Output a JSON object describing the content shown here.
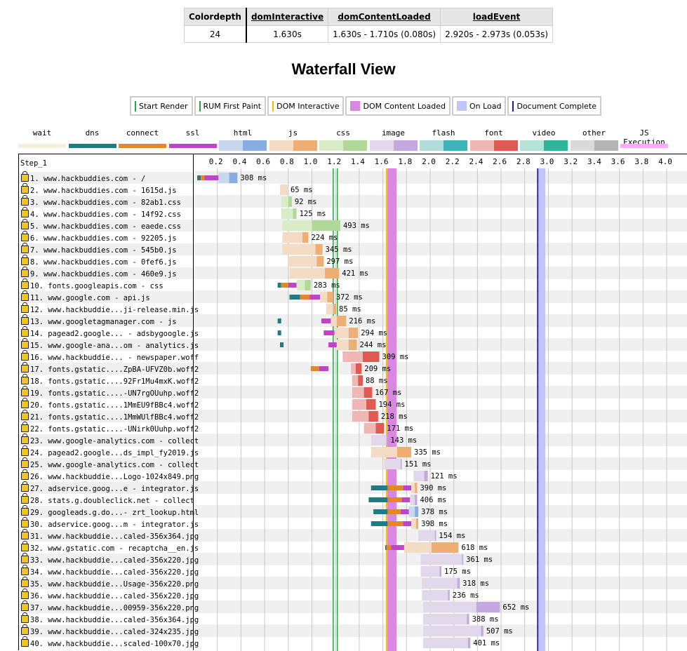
{
  "metrics": {
    "headers": [
      "Colordepth",
      "domInteractive",
      "domContentLoaded",
      "loadEvent"
    ],
    "values": [
      "24",
      "1.630s",
      "1.630s - 1.710s (0.080s)",
      "2.920s - 2.973s (0.053s)"
    ]
  },
  "title": "Waterfall View",
  "markers_legend": [
    {
      "label": "Start Render",
      "color": "#28a745"
    },
    {
      "label": "RUM First Paint",
      "color": "#28a745"
    },
    {
      "label": "DOM Interactive",
      "color": "#f0c000"
    },
    {
      "label": "DOM Content Loaded",
      "color": "#d888e0"
    },
    {
      "label": "On Load",
      "color": "#c0c4f8"
    },
    {
      "label": "Document Complete",
      "color": "#1e1ea8"
    }
  ],
  "type_legend": [
    {
      "label": "wait",
      "colors": [
        "#f2f0dc",
        "#f2f0dc"
      ]
    },
    {
      "label": "dns",
      "colors": [
        "#1e7d82",
        "#1e7d82"
      ]
    },
    {
      "label": "connect",
      "colors": [
        "#e6862a",
        "#e6862a"
      ]
    },
    {
      "label": "ssl",
      "colors": [
        "#c044c8",
        "#c044c8"
      ]
    },
    {
      "label": "html",
      "colors": [
        "#c8d8ee",
        "#86aee4"
      ]
    },
    {
      "label": "js",
      "colors": [
        "#f4dcc4",
        "#efae74"
      ]
    },
    {
      "label": "css",
      "colors": [
        "#d8ecc8",
        "#b0d898"
      ]
    },
    {
      "label": "image",
      "colors": [
        "#e2d8ec",
        "#c4a8e0"
      ]
    },
    {
      "label": "flash",
      "colors": [
        "#b0dcdc",
        "#3cb4b8"
      ]
    },
    {
      "label": "font",
      "colors": [
        "#f0b8b4",
        "#e05a52"
      ]
    },
    {
      "label": "video",
      "colors": [
        "#b4e4d8",
        "#30b49a"
      ]
    },
    {
      "label": "other",
      "colors": [
        "#dadada",
        "#b4b4b4"
      ]
    },
    {
      "label": "JS Execution",
      "colors": [
        "#ffaaff",
        "#ffaaff"
      ]
    }
  ],
  "step_label": "Step_1",
  "chart_data": {
    "type": "waterfall",
    "x_unit": "s",
    "xlim": [
      0,
      4.0
    ],
    "ticks": [
      "0.2",
      "0.4",
      "0.6",
      "0.8",
      "1.0",
      "1.2",
      "1.4",
      "1.6",
      "1.8",
      "2.0",
      "2.2",
      "2.4",
      "2.6",
      "2.8",
      "3.0",
      "3.2",
      "3.4",
      "3.6",
      "3.8",
      "4.0"
    ],
    "tick_values": [
      0.2,
      0.4,
      0.6,
      0.8,
      1.0,
      1.2,
      1.4,
      1.6,
      1.8,
      2.0,
      2.2,
      2.4,
      2.6,
      2.8,
      3.0,
      3.2,
      3.4,
      3.6,
      3.8,
      4.0
    ],
    "markers": {
      "start_render": 1.18,
      "rum_first_paint": 1.215,
      "dom_interactive": 1.63,
      "dom_content_loaded": [
        1.63,
        1.71
      ],
      "on_load": [
        2.92,
        2.973
      ],
      "document_complete": 2.91
    },
    "requests": [
      {
        "label": "1. www.hackbuddies.com - /",
        "start": 0.03,
        "dns": 0.03,
        "connect": 0.03,
        "ssl": 0.12,
        "wait": 0.09,
        "dl": 0.07,
        "type": "html",
        "ms": "308 ms"
      },
      {
        "label": "2. www.hackbuddies.com - 1615d.js",
        "start": 0.73,
        "dns": 0,
        "connect": 0,
        "ssl": 0,
        "wait": 0.065,
        "dl": 0.0,
        "type": "js",
        "ms": "65 ms"
      },
      {
        "label": "3. www.hackbuddies.com - 82ab1.css",
        "start": 0.74,
        "dns": 0,
        "connect": 0,
        "ssl": 0,
        "wait": 0.06,
        "dl": 0.03,
        "type": "css",
        "ms": "92 ms"
      },
      {
        "label": "4. www.hackbuddies.com - 14f92.css",
        "start": 0.74,
        "dns": 0,
        "connect": 0,
        "ssl": 0,
        "wait": 0.1,
        "dl": 0.03,
        "type": "css",
        "ms": "125 ms"
      },
      {
        "label": "5. www.hackbuddies.com - eaede.css",
        "start": 0.75,
        "dns": 0,
        "connect": 0,
        "ssl": 0,
        "wait": 0.25,
        "dl": 0.24,
        "type": "css",
        "ms": "493 ms"
      },
      {
        "label": "6. www.hackbuddies.com - 92205.js",
        "start": 0.75,
        "dns": 0,
        "connect": 0,
        "ssl": 0,
        "wait": 0.17,
        "dl": 0.05,
        "type": "js",
        "ms": "224 ms"
      },
      {
        "label": "7. www.hackbuddies.com - 545b0.js",
        "start": 0.75,
        "dns": 0,
        "connect": 0,
        "ssl": 0,
        "wait": 0.28,
        "dl": 0.06,
        "type": "js",
        "ms": "345 ms"
      },
      {
        "label": "8. www.hackbuddies.com - 0fef6.js",
        "start": 0.8,
        "dns": 0,
        "connect": 0,
        "ssl": 0,
        "wait": 0.24,
        "dl": 0.06,
        "type": "js",
        "ms": "297 ms"
      },
      {
        "label": "9. www.hackbuddies.com - 460e9.js",
        "start": 0.81,
        "dns": 0,
        "connect": 0,
        "ssl": 0,
        "wait": 0.3,
        "dl": 0.12,
        "type": "js",
        "ms": "421 ms"
      },
      {
        "label": "10. fonts.googleapis.com - css",
        "start": 0.71,
        "dns": 0.03,
        "connect": 0.06,
        "ssl": 0.07,
        "wait": 0.07,
        "dl": 0.05,
        "type": "css",
        "ms": "283 ms"
      },
      {
        "label": "11. www.google.com - api.js",
        "start": 0.81,
        "dns": 0.09,
        "connect": 0.08,
        "ssl": 0.09,
        "wait": 0.06,
        "dl": 0.05,
        "type": "js",
        "ms": "372 ms"
      },
      {
        "label": "12. www.hackbuddie...ji-release.min.js",
        "start": 1.12,
        "dns": 0,
        "connect": 0,
        "ssl": 0,
        "wait": 0.06,
        "dl": 0.025,
        "type": "js",
        "ms": "85 ms"
      },
      {
        "label": "13. www.googletagmanager.com - js",
        "start": 0.71,
        "dns": 0.03,
        "connect": 0,
        "ssl": 0,
        "wait": 0.0,
        "dl": 0.0,
        "type": "js",
        "ms": "216 ms",
        "extra": {
          "start": 1.08,
          "ssl": 0.08,
          "wait": 0.05,
          "dl": 0.08
        }
      },
      {
        "label": "14. pagead2.google... - adsbygoogle.js",
        "start": 0.71,
        "dns": 0.03,
        "connect": 0,
        "ssl": 0,
        "wait": 0.0,
        "dl": 0.0,
        "type": "js",
        "ms": "294 ms",
        "extra": {
          "start": 1.1,
          "ssl": 0.09,
          "wait": 0.12,
          "dl": 0.08
        }
      },
      {
        "label": "15. www.google-ana...om - analytics.js",
        "start": 0.73,
        "dns": 0.03,
        "connect": 0,
        "ssl": 0,
        "wait": 0.0,
        "dl": 0.0,
        "type": "js",
        "ms": "244 ms",
        "extra": {
          "start": 1.14,
          "ssl": 0.07,
          "wait": 0.1,
          "dl": 0.07
        }
      },
      {
        "label": "16. www.hackbuddie... - newspaper.woff",
        "start": 1.26,
        "dns": 0,
        "connect": 0,
        "ssl": 0,
        "wait": 0.17,
        "dl": 0.14,
        "type": "font",
        "ms": "309 ms"
      },
      {
        "label": "17. fonts.gstatic....ZpBA-UFVZ0b.woff2",
        "start": 0.99,
        "dns": 0,
        "connect": 0.07,
        "ssl": 0.08,
        "wait": 0.0,
        "dl": 0.0,
        "type": "font",
        "ms": "209 ms",
        "extra": {
          "start": 1.33,
          "ssl": 0,
          "wait": 0.04,
          "dl": 0.05
        }
      },
      {
        "label": "18. fonts.gstatic....92Fr1Mu4mxK.woff2",
        "start": 1.34,
        "dns": 0,
        "connect": 0,
        "ssl": 0,
        "wait": 0.05,
        "dl": 0.04,
        "type": "font",
        "ms": "88 ms"
      },
      {
        "label": "19. fonts.gstatic....-UN7rgOUuhp.woff2",
        "start": 1.34,
        "dns": 0,
        "connect": 0,
        "ssl": 0,
        "wait": 0.1,
        "dl": 0.07,
        "type": "font",
        "ms": "167 ms"
      },
      {
        "label": "20. fonts.gstatic....1MmEU9fBBc4.woff2",
        "start": 1.34,
        "dns": 0,
        "connect": 0,
        "ssl": 0,
        "wait": 0.12,
        "dl": 0.08,
        "type": "font",
        "ms": "194 ms"
      },
      {
        "label": "21. fonts.gstatic....1MmWUlfBBc4.woff2",
        "start": 1.34,
        "dns": 0,
        "connect": 0,
        "ssl": 0,
        "wait": 0.14,
        "dl": 0.08,
        "type": "font",
        "ms": "218 ms"
      },
      {
        "label": "22. fonts.gstatic....-UNirk0Uuhp.woff2",
        "start": 1.44,
        "dns": 0,
        "connect": 0,
        "ssl": 0,
        "wait": 0.1,
        "dl": 0.07,
        "type": "font",
        "ms": "171 ms"
      },
      {
        "label": "23. www.google-analytics.com - collect",
        "start": 1.5,
        "dns": 0,
        "connect": 0,
        "ssl": 0,
        "wait": 0.13,
        "dl": 0.01,
        "type": "image",
        "ms": "143 ms"
      },
      {
        "label": "24. pagead2.google...ds_impl_fy2019.js",
        "start": 1.5,
        "dns": 0,
        "connect": 0,
        "ssl": 0,
        "wait": 0.22,
        "dl": 0.12,
        "type": "js",
        "ms": "335 ms"
      },
      {
        "label": "25. www.google-analytics.com - collect",
        "start": 1.61,
        "dns": 0,
        "connect": 0,
        "ssl": 0,
        "wait": 0.14,
        "dl": 0.01,
        "type": "image",
        "ms": "151 ms"
      },
      {
        "label": "26. www.hackbuddie...Logo-1024x849.png",
        "start": 1.86,
        "dns": 0,
        "connect": 0,
        "ssl": 0,
        "wait": 0.09,
        "dl": 0.03,
        "type": "image",
        "ms": "121 ms"
      },
      {
        "label": "27. adservice.goog...e - integrator.js",
        "start": 1.5,
        "dns": 0.14,
        "connect": 0.13,
        "ssl": 0.07,
        "wait": 0.03,
        "dl": 0.02,
        "type": "js",
        "ms": "390 ms"
      },
      {
        "label": "28. stats.g.doubleclick.net - collect",
        "start": 1.48,
        "dns": 0.16,
        "connect": 0.12,
        "ssl": 0.07,
        "wait": 0.04,
        "dl": 0.02,
        "type": "image",
        "ms": "406 ms"
      },
      {
        "label": "29. googleads.g.do...- zrt_lookup.html",
        "start": 1.52,
        "dns": 0.12,
        "connect": 0.11,
        "ssl": 0.07,
        "wait": 0.05,
        "dl": 0.03,
        "type": "html",
        "ms": "378 ms"
      },
      {
        "label": "30. adservice.goog...m - integrator.js",
        "start": 1.5,
        "dns": 0.14,
        "connect": 0.13,
        "ssl": 0.07,
        "wait": 0.04,
        "dl": 0.02,
        "type": "js",
        "ms": "398 ms"
      },
      {
        "label": "31. www.hackbuddie...caled-356x364.jpg",
        "start": 1.9,
        "dns": 0,
        "connect": 0,
        "ssl": 0,
        "wait": 0.14,
        "dl": 0.01,
        "type": "image",
        "ms": "154 ms"
      },
      {
        "label": "32. www.gstatic.com - recaptcha__en.js",
        "start": 1.62,
        "dns": 0.01,
        "connect": 0.04,
        "ssl": 0.11,
        "wait": 0.23,
        "dl": 0.23,
        "type": "js",
        "ms": "618 ms"
      },
      {
        "label": "33. www.hackbuddie...caled-356x220.jpg",
        "start": 1.92,
        "dns": 0,
        "connect": 0,
        "ssl": 0,
        "wait": 0.35,
        "dl": 0.01,
        "type": "image",
        "ms": "361 ms"
      },
      {
        "label": "34. www.hackbuddie...caled-356x220.jpg",
        "start": 1.92,
        "dns": 0,
        "connect": 0,
        "ssl": 0,
        "wait": 0.16,
        "dl": 0.015,
        "type": "image",
        "ms": "175 ms"
      },
      {
        "label": "35. www.hackbuddie...Usage-356x220.png",
        "start": 1.93,
        "dns": 0,
        "connect": 0,
        "ssl": 0,
        "wait": 0.3,
        "dl": 0.02,
        "type": "image",
        "ms": "318 ms"
      },
      {
        "label": "36. www.hackbuddie...caled-356x220.jpg",
        "start": 1.93,
        "dns": 0,
        "connect": 0,
        "ssl": 0,
        "wait": 0.22,
        "dl": 0.015,
        "type": "image",
        "ms": "236 ms"
      },
      {
        "label": "37. www.hackbuddie...00959-356x220.png",
        "start": 1.94,
        "dns": 0,
        "connect": 0,
        "ssl": 0,
        "wait": 0.45,
        "dl": 0.2,
        "type": "image",
        "ms": "652 ms"
      },
      {
        "label": "38. www.hackbuddie...caled-356x364.jpg",
        "start": 1.94,
        "dns": 0,
        "connect": 0,
        "ssl": 0,
        "wait": 0.37,
        "dl": 0.02,
        "type": "image",
        "ms": "388 ms"
      },
      {
        "label": "39. www.hackbuddie...caled-324x235.jpg",
        "start": 1.94,
        "dns": 0,
        "connect": 0,
        "ssl": 0,
        "wait": 0.49,
        "dl": 0.02,
        "type": "image",
        "ms": "507 ms"
      },
      {
        "label": "40. www.hackbuddie...scaled-100x70.jpg",
        "start": 1.94,
        "dns": 0,
        "connect": 0,
        "ssl": 0,
        "wait": 0.38,
        "dl": 0.02,
        "type": "image",
        "ms": "401 ms"
      }
    ]
  }
}
